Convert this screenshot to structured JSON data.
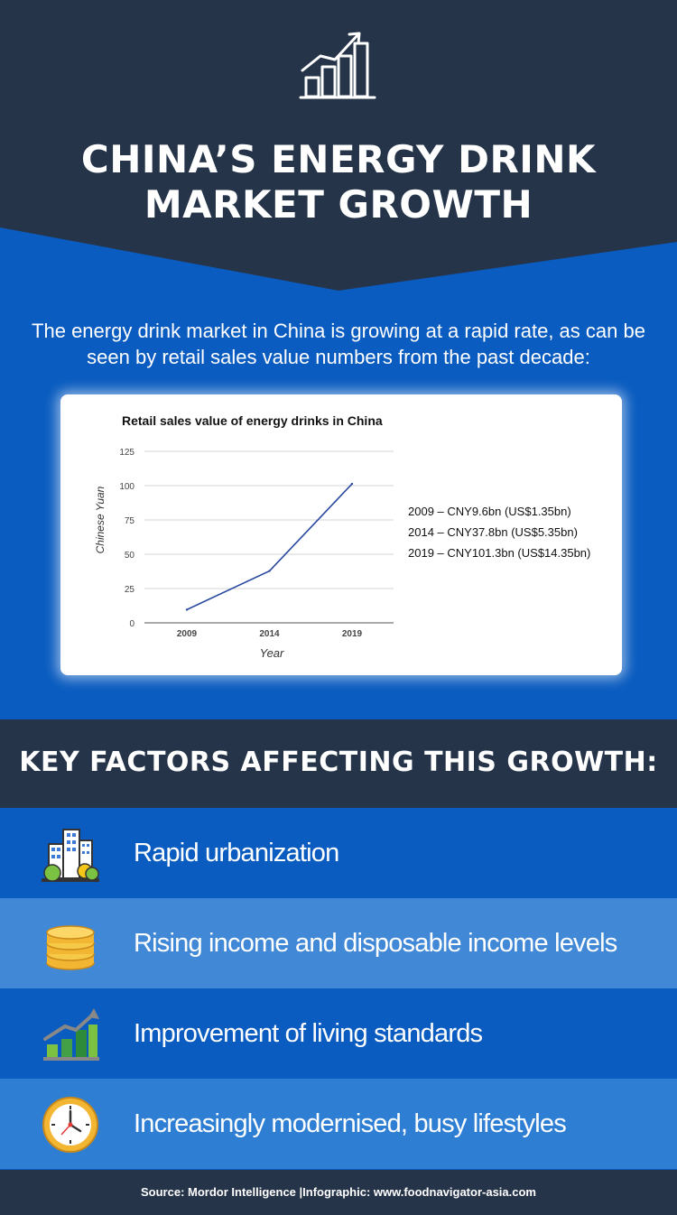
{
  "header": {
    "title_line1": "CHINA’S ENERGY DRINK",
    "title_line2": "MARKET GROWTH",
    "icon": "growth-chart-icon"
  },
  "intro": "The energy drink market in China is growing at a rapid rate, as can be seen by retail sales value numbers from the past decade:",
  "chart_data": {
    "type": "line",
    "title": "Retail sales value of energy drinks in China",
    "xlabel": "Year",
    "ylabel": "Chinese Yuan",
    "x": [
      "2009",
      "2014",
      "2019"
    ],
    "series": [
      {
        "values": [
          9.6,
          37.8,
          101.3
        ],
        "color": "#2a4aa0"
      }
    ],
    "yticks": [
      0,
      25,
      50,
      75,
      100,
      125
    ],
    "ylim": [
      0,
      125
    ],
    "grid": true,
    "notes": [
      "2009 – CNY9.6bn (US$1.35bn)",
      "2014 – CNY37.8bn (US$5.35bn)",
      "2019 – CNY101.3bn (US$14.35bn)"
    ]
  },
  "key_factors": {
    "heading": "KEY FACTORS AFFECTING THIS GROWTH:",
    "items": [
      {
        "label": "Rapid urbanization",
        "icon": "city-buildings-icon",
        "bg": "#0a5cc0"
      },
      {
        "label": "Rising income and disposable income levels",
        "icon": "coin-stack-icon",
        "bg": "#4188d6"
      },
      {
        "label": "Improvement of living standards",
        "icon": "growth-bars-icon",
        "bg": "#0a5cc0"
      },
      {
        "label": "Increasingly modernised, busy lifestyles",
        "icon": "clock-icon",
        "bg": "#2e7fd4"
      }
    ]
  },
  "footer": "Source: Mordor Intelligence |Infographic: www.foodnavigator-asia.com",
  "colors": {
    "dark_navy": "#26344a",
    "blue": "#0a5cc0",
    "light_blue": "#4188d6"
  }
}
